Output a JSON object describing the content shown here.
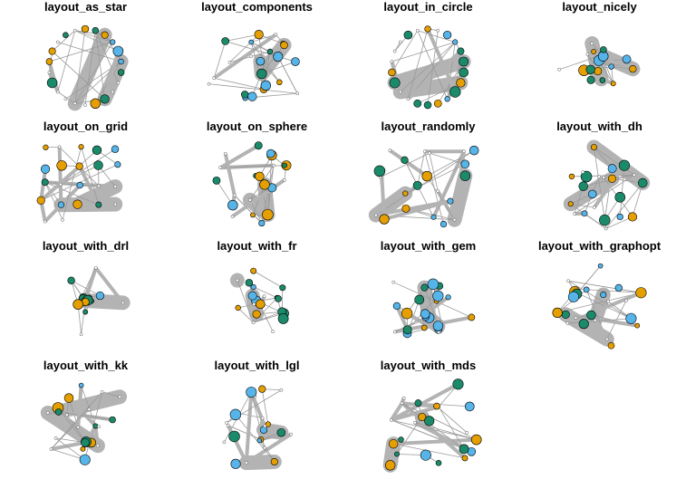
{
  "colors": {
    "orange": "#E69F00",
    "blue": "#56B4E9",
    "green": "#1B8A6B",
    "edge": "#9a9a9a",
    "hull": "#b3b3b3",
    "outline": "#000000"
  },
  "panels": [
    {
      "title": "layout_as_star",
      "style": "circle"
    },
    {
      "title": "layout_components",
      "style": "components"
    },
    {
      "title": "layout_in_circle",
      "style": "circle"
    },
    {
      "title": "layout_nicely",
      "style": "cluster"
    },
    {
      "title": "layout_on_grid",
      "style": "grid"
    },
    {
      "title": "layout_on_sphere",
      "style": "spread"
    },
    {
      "title": "layout_randomly",
      "style": "random"
    },
    {
      "title": "layout_with_dh",
      "style": "spread"
    },
    {
      "title": "layout_with_drl",
      "style": "cluster"
    },
    {
      "title": "layout_with_fr",
      "style": "cluster"
    },
    {
      "title": "layout_with_gem",
      "style": "spread"
    },
    {
      "title": "layout_with_graphopt",
      "style": "spread"
    },
    {
      "title": "layout_with_kk",
      "style": "spread"
    },
    {
      "title": "layout_with_lgl",
      "style": "spread"
    },
    {
      "title": "layout_with_mds",
      "style": "random"
    }
  ]
}
